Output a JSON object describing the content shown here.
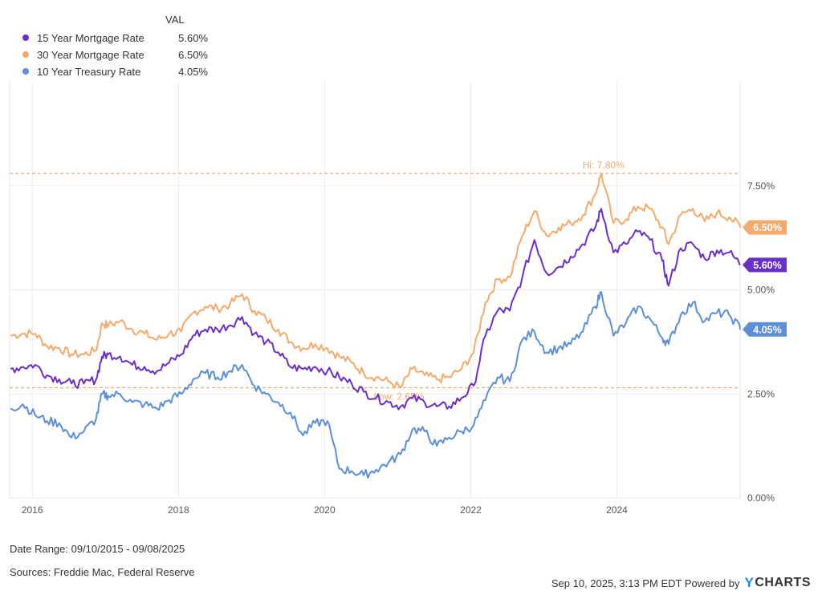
{
  "legend": {
    "header": "VAL",
    "items": [
      {
        "name": "15 Year Mortgage Rate",
        "value": "5.60%",
        "color": "#6b2fc9"
      },
      {
        "name": "30 Year Mortgage Rate",
        "value": "6.50%",
        "color": "#f5a96b"
      },
      {
        "name": "10 Year Treasury Rate",
        "value": "4.05%",
        "color": "#5b8fd8"
      }
    ]
  },
  "footer": {
    "date_range": "Date Range: 09/10/2015 - 09/08/2025",
    "sources": "Sources: Freddie Mac, Federal Reserve",
    "timestamp": "Sep 10, 2025, 3:13 PM EDT Powered by",
    "brand": "CHARTS",
    "brand_letter": "Y"
  },
  "chart_data": {
    "type": "line",
    "x_range": [
      "2015-09-10",
      "2025-09-08"
    ],
    "ylim": [
      0,
      10
    ],
    "y_ticks": [
      {
        "value": 0,
        "label": "0.00%"
      },
      {
        "value": 2.5,
        "label": "2.50%"
      },
      {
        "value": 5,
        "label": "5.00%"
      },
      {
        "value": 7.5,
        "label": "7.50%"
      }
    ],
    "x_ticks": [
      {
        "year": 2016,
        "label": "2016"
      },
      {
        "year": 2018,
        "label": "2018"
      },
      {
        "year": 2020,
        "label": "2020"
      },
      {
        "year": 2022,
        "label": "2022"
      },
      {
        "year": 2024,
        "label": "2024"
      }
    ],
    "grid": true,
    "legend_position": "top-left",
    "reference_lines": [
      {
        "value": 7.8,
        "label": "Hi: 7.80%",
        "date": "2023-10-26",
        "color": "#f5a96b"
      },
      {
        "value": 2.65,
        "label": "Low: 2.65%",
        "date": "2021-01-07",
        "color": "#f5a96b"
      }
    ],
    "series": [
      {
        "name": "30 Year Mortgage Rate",
        "color": "#f5a96b",
        "end_label": "6.50%",
        "points": [
          [
            "2015-09",
            3.9
          ],
          [
            "2015-11",
            3.95
          ],
          [
            "2016-01",
            3.95
          ],
          [
            "2016-03",
            3.65
          ],
          [
            "2016-05",
            3.6
          ],
          [
            "2016-07",
            3.45
          ],
          [
            "2016-09",
            3.45
          ],
          [
            "2016-11",
            3.55
          ],
          [
            "2016-12",
            4.2
          ],
          [
            "2017-01",
            4.15
          ],
          [
            "2017-03",
            4.25
          ],
          [
            "2017-05",
            4.05
          ],
          [
            "2017-07",
            3.95
          ],
          [
            "2017-09",
            3.8
          ],
          [
            "2017-11",
            3.95
          ],
          [
            "2018-01",
            4.0
          ],
          [
            "2018-03",
            4.45
          ],
          [
            "2018-05",
            4.6
          ],
          [
            "2018-07",
            4.55
          ],
          [
            "2018-09",
            4.65
          ],
          [
            "2018-11",
            4.9
          ],
          [
            "2019-01",
            4.5
          ],
          [
            "2019-03",
            4.3
          ],
          [
            "2019-05",
            4.05
          ],
          [
            "2019-07",
            3.75
          ],
          [
            "2019-09",
            3.6
          ],
          [
            "2019-11",
            3.7
          ],
          [
            "2020-01",
            3.6
          ],
          [
            "2020-03",
            3.4
          ],
          [
            "2020-05",
            3.25
          ],
          [
            "2020-07",
            3.0
          ],
          [
            "2020-09",
            2.9
          ],
          [
            "2020-11",
            2.8
          ],
          [
            "2021-01",
            2.65
          ],
          [
            "2021-03",
            3.1
          ],
          [
            "2021-05",
            2.95
          ],
          [
            "2021-07",
            2.85
          ],
          [
            "2021-09",
            2.9
          ],
          [
            "2021-11",
            3.1
          ],
          [
            "2022-01",
            3.5
          ],
          [
            "2022-03",
            4.7
          ],
          [
            "2022-05",
            5.25
          ],
          [
            "2022-07",
            5.3
          ],
          [
            "2022-09",
            6.3
          ],
          [
            "2022-11",
            6.9
          ],
          [
            "2023-01",
            6.3
          ],
          [
            "2023-03",
            6.5
          ],
          [
            "2023-05",
            6.6
          ],
          [
            "2023-07",
            6.8
          ],
          [
            "2023-09",
            7.3
          ],
          [
            "2023-10",
            7.8
          ],
          [
            "2023-12",
            6.6
          ],
          [
            "2024-02",
            6.7
          ],
          [
            "2024-04",
            7.0
          ],
          [
            "2024-06",
            6.95
          ],
          [
            "2024-08",
            6.5
          ],
          [
            "2024-09",
            6.1
          ],
          [
            "2024-11",
            6.8
          ],
          [
            "2025-01",
            6.95
          ],
          [
            "2025-03",
            6.65
          ],
          [
            "2025-05",
            6.85
          ],
          [
            "2025-07",
            6.75
          ],
          [
            "2025-09",
            6.5
          ]
        ]
      },
      {
        "name": "15 Year Mortgage Rate",
        "color": "#6b2fc9",
        "end_label": "5.60%",
        "points": [
          [
            "2015-09",
            3.1
          ],
          [
            "2015-11",
            3.15
          ],
          [
            "2016-01",
            3.2
          ],
          [
            "2016-03",
            2.95
          ],
          [
            "2016-05",
            2.85
          ],
          [
            "2016-07",
            2.75
          ],
          [
            "2016-09",
            2.75
          ],
          [
            "2016-11",
            2.85
          ],
          [
            "2016-12",
            3.4
          ],
          [
            "2017-01",
            3.45
          ],
          [
            "2017-03",
            3.4
          ],
          [
            "2017-05",
            3.2
          ],
          [
            "2017-07",
            3.15
          ],
          [
            "2017-09",
            3.05
          ],
          [
            "2017-11",
            3.25
          ],
          [
            "2018-01",
            3.45
          ],
          [
            "2018-03",
            3.9
          ],
          [
            "2018-05",
            4.05
          ],
          [
            "2018-07",
            4.05
          ],
          [
            "2018-09",
            4.15
          ],
          [
            "2018-11",
            4.35
          ],
          [
            "2019-01",
            3.95
          ],
          [
            "2019-03",
            3.75
          ],
          [
            "2019-05",
            3.5
          ],
          [
            "2019-07",
            3.15
          ],
          [
            "2019-09",
            3.1
          ],
          [
            "2019-11",
            3.15
          ],
          [
            "2020-01",
            3.05
          ],
          [
            "2020-03",
            2.9
          ],
          [
            "2020-05",
            2.75
          ],
          [
            "2020-07",
            2.55
          ],
          [
            "2020-09",
            2.4
          ],
          [
            "2020-11",
            2.3
          ],
          [
            "2021-01",
            2.2
          ],
          [
            "2021-03",
            2.4
          ],
          [
            "2021-05",
            2.3
          ],
          [
            "2021-07",
            2.2
          ],
          [
            "2021-09",
            2.2
          ],
          [
            "2021-11",
            2.4
          ],
          [
            "2022-01",
            2.7
          ],
          [
            "2022-03",
            3.9
          ],
          [
            "2022-05",
            4.5
          ],
          [
            "2022-07",
            4.5
          ],
          [
            "2022-09",
            5.3
          ],
          [
            "2022-11",
            6.2
          ],
          [
            "2023-01",
            5.4
          ],
          [
            "2023-03",
            5.55
          ],
          [
            "2023-05",
            5.8
          ],
          [
            "2023-07",
            6.1
          ],
          [
            "2023-09",
            6.5
          ],
          [
            "2023-10",
            6.95
          ],
          [
            "2023-12",
            5.9
          ],
          [
            "2024-02",
            6.1
          ],
          [
            "2024-04",
            6.4
          ],
          [
            "2024-06",
            6.2
          ],
          [
            "2024-08",
            5.7
          ],
          [
            "2024-09",
            5.1
          ],
          [
            "2024-11",
            6.0
          ],
          [
            "2025-01",
            6.1
          ],
          [
            "2025-03",
            5.75
          ],
          [
            "2025-05",
            5.95
          ],
          [
            "2025-07",
            5.9
          ],
          [
            "2025-09",
            5.6
          ]
        ]
      },
      {
        "name": "10 Year Treasury Rate",
        "color": "#5b8fd8",
        "end_label": "4.05%",
        "points": [
          [
            "2015-09",
            2.15
          ],
          [
            "2015-11",
            2.25
          ],
          [
            "2016-01",
            2.0
          ],
          [
            "2016-03",
            1.85
          ],
          [
            "2016-05",
            1.8
          ],
          [
            "2016-07",
            1.45
          ],
          [
            "2016-09",
            1.6
          ],
          [
            "2016-11",
            1.9
          ],
          [
            "2016-12",
            2.5
          ],
          [
            "2017-01",
            2.45
          ],
          [
            "2017-03",
            2.5
          ],
          [
            "2017-05",
            2.3
          ],
          [
            "2017-07",
            2.25
          ],
          [
            "2017-09",
            2.15
          ],
          [
            "2017-11",
            2.35
          ],
          [
            "2018-01",
            2.5
          ],
          [
            "2018-03",
            2.85
          ],
          [
            "2018-05",
            3.0
          ],
          [
            "2018-07",
            2.9
          ],
          [
            "2018-09",
            3.05
          ],
          [
            "2018-11",
            3.2
          ],
          [
            "2019-01",
            2.7
          ],
          [
            "2019-03",
            2.5
          ],
          [
            "2019-05",
            2.3
          ],
          [
            "2019-07",
            2.05
          ],
          [
            "2019-09",
            1.5
          ],
          [
            "2019-11",
            1.8
          ],
          [
            "2020-01",
            1.85
          ],
          [
            "2020-03",
            0.7
          ],
          [
            "2020-05",
            0.65
          ],
          [
            "2020-07",
            0.55
          ],
          [
            "2020-09",
            0.68
          ],
          [
            "2020-11",
            0.85
          ],
          [
            "2021-01",
            1.05
          ],
          [
            "2021-03",
            1.65
          ],
          [
            "2021-05",
            1.6
          ],
          [
            "2021-07",
            1.25
          ],
          [
            "2021-09",
            1.45
          ],
          [
            "2021-11",
            1.6
          ],
          [
            "2022-01",
            1.75
          ],
          [
            "2022-03",
            2.35
          ],
          [
            "2022-05",
            2.9
          ],
          [
            "2022-07",
            2.8
          ],
          [
            "2022-09",
            3.8
          ],
          [
            "2022-11",
            4.0
          ],
          [
            "2023-01",
            3.5
          ],
          [
            "2023-03",
            3.6
          ],
          [
            "2023-05",
            3.7
          ],
          [
            "2023-07",
            4.0
          ],
          [
            "2023-09",
            4.6
          ],
          [
            "2023-10",
            4.95
          ],
          [
            "2023-12",
            3.9
          ],
          [
            "2024-02",
            4.2
          ],
          [
            "2024-04",
            4.6
          ],
          [
            "2024-06",
            4.3
          ],
          [
            "2024-08",
            3.85
          ],
          [
            "2024-09",
            3.7
          ],
          [
            "2024-11",
            4.4
          ],
          [
            "2025-01",
            4.7
          ],
          [
            "2025-03",
            4.25
          ],
          [
            "2025-05",
            4.45
          ],
          [
            "2025-07",
            4.4
          ],
          [
            "2025-09",
            4.05
          ]
        ]
      }
    ]
  }
}
